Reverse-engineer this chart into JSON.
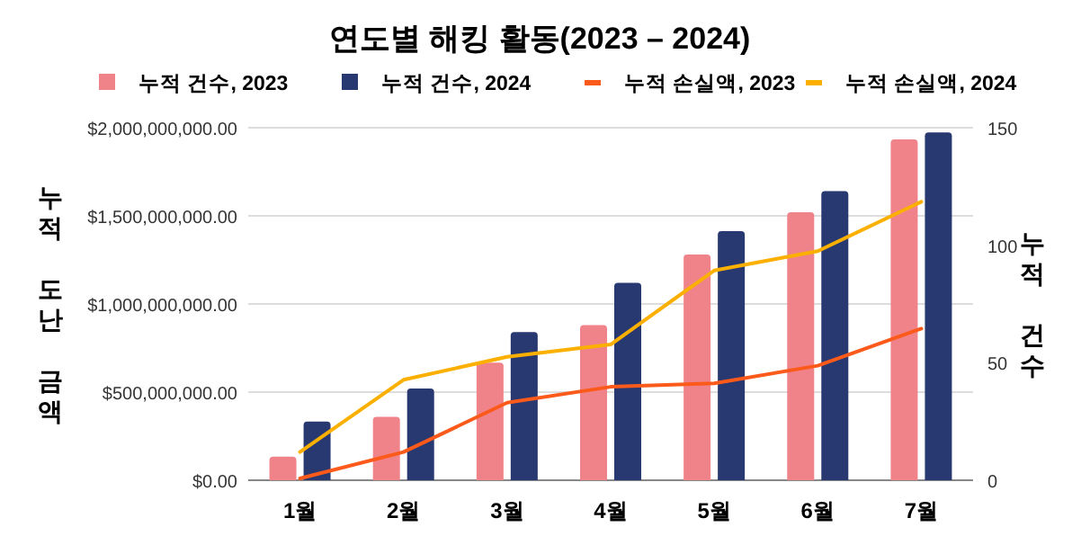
{
  "chart_data": {
    "type": "bar",
    "title": "연도별 해킹 활동(2023 – 2024)",
    "ylabel": "누적 도난 금액",
    "y2label": "누적 건수",
    "categories": [
      "1월",
      "2월",
      "3월",
      "4월",
      "5월",
      "6월",
      "7월"
    ],
    "series": [
      {
        "name": "누적 건수, 2023",
        "axis": "y2",
        "color": "#f0838a",
        "values": [
          10,
          27,
          50,
          66,
          96,
          114,
          145
        ]
      },
      {
        "name": "누적 건수, 2024",
        "axis": "y2",
        "color": "#283870",
        "values": [
          25,
          39,
          63,
          84,
          106,
          123,
          148
        ]
      },
      {
        "name": "누적 손실액, 2023",
        "type": "line",
        "color": "#fc5a1a",
        "values": [
          10000000,
          160000000,
          440000000,
          530000000,
          550000000,
          650000000,
          860000000
        ]
      },
      {
        "name": "누적 손실액, 2024",
        "type": "line",
        "color": "#fbb000",
        "values": [
          160000000,
          570000000,
          700000000,
          770000000,
          1190000000,
          1300000000,
          1580000000
        ]
      }
    ],
    "ylim": [
      0,
      2000000000
    ],
    "yticks": [
      {
        "value": 0,
        "label": "$0.00"
      },
      {
        "value": 500000000,
        "label": "$500,000,000.00"
      },
      {
        "value": 1000000000,
        "label": "$1,000,000,000.00"
      },
      {
        "value": 1500000000,
        "label": "$1,500,000,000.00"
      },
      {
        "value": 2000000000,
        "label": "$2,000,000,000.00"
      }
    ],
    "y2lim": [
      0,
      150
    ],
    "y2ticks": [
      0,
      50,
      100,
      150
    ],
    "grid": "y",
    "legend": "top"
  }
}
